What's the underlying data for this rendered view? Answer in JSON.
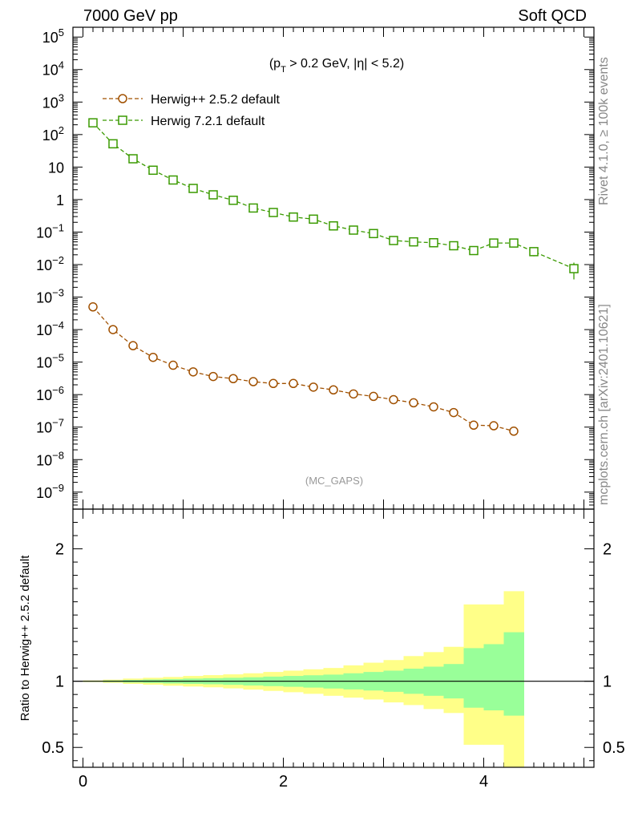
{
  "header": {
    "left": "7000 GeV pp",
    "right": "Soft QCD"
  },
  "side_labels": {
    "rivet": "Rivet 4.1.0, ≥ 100k events",
    "mcplots": "mcplots.cern.ch [arXiv:2401.10621]"
  },
  "chart_data": [
    {
      "type": "line",
      "panel": "main",
      "yscale": "log",
      "cut_label_parts": [
        "(p",
        "T",
        " > 0.2 GeV, |η| < 5.2)"
      ],
      "watermark": "(MC_GAPS)",
      "xlim": [
        -0.1,
        5.1
      ],
      "ylim": [
        3e-10,
        200000.0
      ],
      "y_ticks": [
        {
          "v": 100000.0,
          "base": "10",
          "exp": "5"
        },
        {
          "v": 10000.0,
          "base": "10",
          "exp": "4"
        },
        {
          "v": 1000.0,
          "base": "10",
          "exp": "3"
        },
        {
          "v": 100.0,
          "base": "10",
          "exp": "2"
        },
        {
          "v": 10,
          "base": "10",
          "exp": ""
        },
        {
          "v": 1,
          "base": "1",
          "exp": ""
        },
        {
          "v": 0.1,
          "base": "10",
          "exp": "−1"
        },
        {
          "v": 0.01,
          "base": "10",
          "exp": "−2"
        },
        {
          "v": 0.001,
          "base": "10",
          "exp": "−3"
        },
        {
          "v": 0.0001,
          "base": "10",
          "exp": "−4"
        },
        {
          "v": 1e-05,
          "base": "10",
          "exp": "−5"
        },
        {
          "v": 1e-06,
          "base": "10",
          "exp": "−6"
        },
        {
          "v": 1e-07,
          "base": "10",
          "exp": "−7"
        },
        {
          "v": 1e-08,
          "base": "10",
          "exp": "−8"
        },
        {
          "v": 1e-09,
          "base": "10",
          "exp": "−9"
        }
      ],
      "series": [
        {
          "name": "Herwig++ 2.5.2 default",
          "color": "#a05000",
          "marker": "circle",
          "x": [
            0.1,
            0.3,
            0.5,
            0.7,
            0.9,
            1.1,
            1.3,
            1.5,
            1.7,
            1.9,
            2.1,
            2.3,
            2.5,
            2.7,
            2.9,
            3.1,
            3.3,
            3.5,
            3.7,
            3.9,
            4.1,
            4.3
          ],
          "y": [
            0.0005,
            0.0001,
            3.2e-05,
            1.4e-05,
            8e-06,
            5e-06,
            3.6e-06,
            3.1e-06,
            2.5e-06,
            2.2e-06,
            2.2e-06,
            1.7e-06,
            1.4e-06,
            1.05e-06,
            8.8e-07,
            7e-07,
            5.6e-07,
            4.2e-07,
            2.8e-07,
            1.15e-07,
            1.1e-07,
            7.5e-08
          ]
        },
        {
          "name": "Herwig 7.2.1 default",
          "color": "#3a9a00",
          "marker": "square",
          "x": [
            0.1,
            0.3,
            0.5,
            0.7,
            0.9,
            1.1,
            1.3,
            1.5,
            1.7,
            1.9,
            2.1,
            2.3,
            2.5,
            2.7,
            2.9,
            3.1,
            3.3,
            3.5,
            3.7,
            3.9,
            4.1,
            4.3,
            4.5,
            4.9
          ],
          "y": [
            230,
            52,
            18,
            8,
            4,
            2.2,
            1.4,
            0.95,
            0.55,
            0.4,
            0.29,
            0.25,
            0.155,
            0.115,
            0.09,
            0.055,
            0.05,
            0.047,
            0.038,
            0.027,
            0.046,
            0.046,
            0.025,
            0.0075
          ],
          "y_err": [
            0,
            0,
            0,
            0,
            0,
            0,
            0,
            0,
            0,
            0,
            0,
            0,
            0,
            0,
            0,
            0,
            0,
            0,
            0.004,
            0.007,
            0,
            0,
            0.007,
            0.004
          ]
        }
      ]
    },
    {
      "type": "area",
      "panel": "ratio",
      "ylabel": "Ratio to Herwig++ 2.5.2 default",
      "xlim": [
        -0.1,
        5.1
      ],
      "ylim": [
        0.35,
        2.3
      ],
      "y_ticks": [
        {
          "v": 2,
          "label": "2"
        },
        {
          "v": 1,
          "label": "1"
        },
        {
          "v": 0.5,
          "label": "0.5"
        }
      ],
      "x_ticks": [
        {
          "v": 0,
          "label": "0"
        },
        {
          "v": 2,
          "label": "2"
        },
        {
          "v": 4,
          "label": "4"
        }
      ],
      "reference": 1,
      "band_colors": {
        "inner": "#99ff99",
        "outer": "#ffff88"
      },
      "bins": [
        0,
        0.2,
        0.4,
        0.6,
        0.8,
        1.0,
        1.2,
        1.4,
        1.6,
        1.8,
        2.0,
        2.2,
        2.4,
        2.6,
        2.8,
        3.0,
        3.2,
        3.4,
        3.6,
        3.8,
        4.0,
        4.2,
        4.4
      ],
      "inner_up": [
        1.003,
        1.006,
        1.01,
        1.013,
        1.016,
        1.02,
        1.023,
        1.026,
        1.03,
        1.035,
        1.04,
        1.045,
        1.05,
        1.06,
        1.07,
        1.08,
        1.095,
        1.11,
        1.13,
        1.25,
        1.28,
        1.37
      ],
      "inner_dn": [
        0.997,
        0.994,
        0.99,
        0.987,
        0.983,
        0.98,
        0.977,
        0.973,
        0.968,
        0.963,
        0.958,
        0.952,
        0.945,
        0.938,
        0.93,
        0.92,
        0.905,
        0.89,
        0.87,
        0.8,
        0.78,
        0.74
      ],
      "outer_up": [
        1.006,
        1.012,
        1.02,
        1.026,
        1.032,
        1.04,
        1.046,
        1.052,
        1.06,
        1.07,
        1.08,
        1.09,
        1.1,
        1.12,
        1.14,
        1.16,
        1.19,
        1.22,
        1.26,
        1.58,
        1.58,
        1.68
      ],
      "outer_dn": [
        0.994,
        0.988,
        0.98,
        0.974,
        0.966,
        0.96,
        0.954,
        0.946,
        0.937,
        0.927,
        0.917,
        0.905,
        0.89,
        0.876,
        0.862,
        0.84,
        0.82,
        0.79,
        0.76,
        0.52,
        0.52,
        0.3
      ]
    }
  ]
}
